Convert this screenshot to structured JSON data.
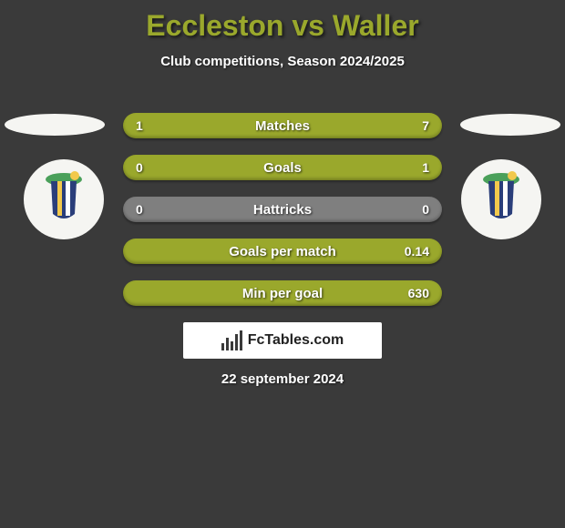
{
  "title": {
    "text": "Eccleston vs Waller",
    "color": "#9aa82c",
    "fontsize": 32
  },
  "subtitle": "Club competitions, Season 2024/2025",
  "background_color": "#3a3a3a",
  "text_color": "#ffffff",
  "stats": {
    "bar_color_selected": "#9aa82c",
    "bar_color_base": "#7f7f7f",
    "rows": [
      {
        "label": "Matches",
        "left": "1",
        "right": "7",
        "left_ratio": 0.125,
        "right_ratio": 0.875
      },
      {
        "label": "Goals",
        "left": "0",
        "right": "1",
        "left_ratio": 0.0,
        "right_ratio": 1.0
      },
      {
        "label": "Hattricks",
        "left": "0",
        "right": "0",
        "left_ratio": 0.0,
        "right_ratio": 0.0
      },
      {
        "label": "Goals per match",
        "left": "",
        "right": "0.14",
        "left_ratio": 0.0,
        "right_ratio": 1.0
      },
      {
        "label": "Min per goal",
        "left": "",
        "right": "630",
        "left_ratio": 0.0,
        "right_ratio": 1.0
      }
    ]
  },
  "sides": {
    "oval_color": "#f5f5f2",
    "left_badge_bg": "#f5f5f2",
    "right_badge_bg": "#f5f5f2",
    "crest_shield": "#2a3e7a",
    "crest_stripe1": "#f2c94c",
    "crest_stripe2": "#ffffff",
    "crest_top": "#4aa05a",
    "crest_ball": "#f2c94c"
  },
  "footer": {
    "brand": "FcTables.com",
    "box_bg": "#ffffff",
    "icon_color": "#3a3a3a"
  },
  "date": "22 september 2024"
}
